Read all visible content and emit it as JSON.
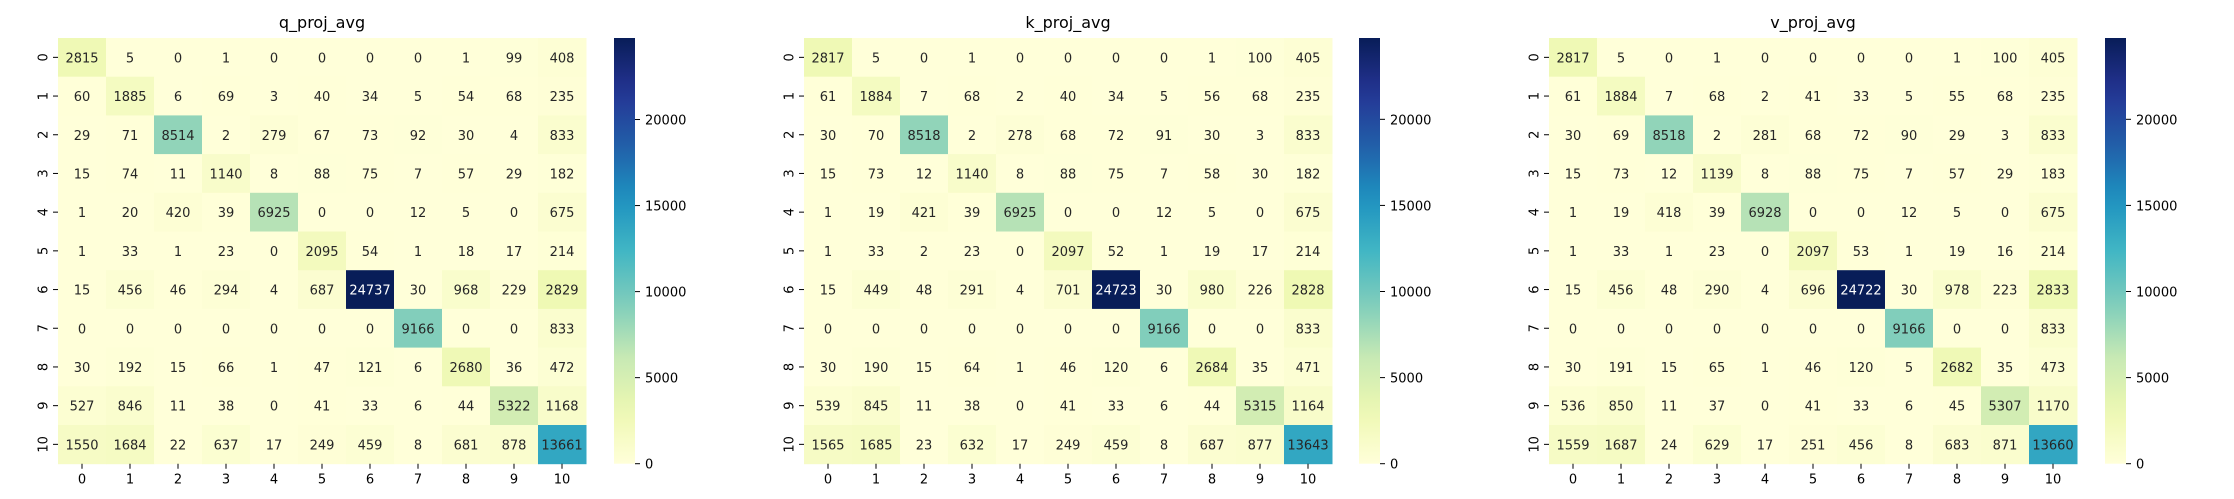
{
  "chart_data": [
    {
      "type": "heatmap",
      "title": "q_proj_avg",
      "x_categories": [
        "0",
        "1",
        "2",
        "3",
        "4",
        "5",
        "6",
        "7",
        "8",
        "9",
        "10"
      ],
      "y_categories": [
        "0",
        "1",
        "2",
        "3",
        "4",
        "5",
        "6",
        "7",
        "8",
        "9",
        "10"
      ],
      "values": [
        [
          2815,
          5,
          0,
          1,
          0,
          0,
          0,
          0,
          1,
          99,
          408
        ],
        [
          60,
          1885,
          6,
          69,
          3,
          40,
          34,
          5,
          54,
          68,
          235
        ],
        [
          29,
          71,
          8514,
          2,
          279,
          67,
          73,
          92,
          30,
          4,
          833
        ],
        [
          15,
          74,
          11,
          1140,
          8,
          88,
          75,
          7,
          57,
          29,
          182
        ],
        [
          1,
          20,
          420,
          39,
          6925,
          0,
          0,
          12,
          5,
          0,
          675
        ],
        [
          1,
          33,
          1,
          23,
          0,
          2095,
          54,
          1,
          18,
          17,
          214
        ],
        [
          15,
          456,
          46,
          294,
          4,
          687,
          24737,
          30,
          968,
          229,
          2829
        ],
        [
          0,
          0,
          0,
          0,
          0,
          0,
          0,
          9166,
          0,
          0,
          833
        ],
        [
          30,
          192,
          15,
          66,
          1,
          47,
          121,
          6,
          2680,
          36,
          472
        ],
        [
          527,
          846,
          11,
          38,
          0,
          41,
          33,
          6,
          44,
          5322,
          1168
        ],
        [
          1550,
          1684,
          22,
          637,
          17,
          249,
          459,
          8,
          681,
          878,
          13661
        ]
      ],
      "colorbar": {
        "range": [
          0,
          24737
        ],
        "ticks": [
          0,
          5000,
          10000,
          15000,
          20000
        ],
        "colormap": "YlGnBu"
      }
    },
    {
      "type": "heatmap",
      "title": "k_proj_avg",
      "x_categories": [
        "0",
        "1",
        "2",
        "3",
        "4",
        "5",
        "6",
        "7",
        "8",
        "9",
        "10"
      ],
      "y_categories": [
        "0",
        "1",
        "2",
        "3",
        "4",
        "5",
        "6",
        "7",
        "8",
        "9",
        "10"
      ],
      "values": [
        [
          2817,
          5,
          0,
          1,
          0,
          0,
          0,
          0,
          1,
          100,
          405
        ],
        [
          61,
          1884,
          7,
          68,
          2,
          40,
          34,
          5,
          56,
          68,
          235
        ],
        [
          30,
          70,
          8518,
          2,
          278,
          68,
          72,
          91,
          30,
          3,
          833
        ],
        [
          15,
          73,
          12,
          1140,
          8,
          88,
          75,
          7,
          58,
          30,
          182
        ],
        [
          1,
          19,
          421,
          39,
          6925,
          0,
          0,
          12,
          5,
          0,
          675
        ],
        [
          1,
          33,
          2,
          23,
          0,
          2097,
          52,
          1,
          19,
          17,
          214
        ],
        [
          15,
          449,
          48,
          291,
          4,
          701,
          24723,
          30,
          980,
          226,
          2828
        ],
        [
          0,
          0,
          0,
          0,
          0,
          0,
          0,
          9166,
          0,
          0,
          833
        ],
        [
          30,
          190,
          15,
          64,
          1,
          46,
          120,
          6,
          2684,
          35,
          471
        ],
        [
          539,
          845,
          11,
          38,
          0,
          41,
          33,
          6,
          44,
          5315,
          1164
        ],
        [
          1565,
          1685,
          23,
          632,
          17,
          249,
          459,
          8,
          687,
          877,
          13643
        ]
      ],
      "colorbar": {
        "range": [
          0,
          24723
        ],
        "ticks": [
          0,
          5000,
          10000,
          15000,
          20000
        ],
        "colormap": "YlGnBu"
      }
    },
    {
      "type": "heatmap",
      "title": "v_proj_avg",
      "x_categories": [
        "0",
        "1",
        "2",
        "3",
        "4",
        "5",
        "6",
        "7",
        "8",
        "9",
        "10"
      ],
      "y_categories": [
        "0",
        "1",
        "2",
        "3",
        "4",
        "5",
        "6",
        "7",
        "8",
        "9",
        "10"
      ],
      "values": [
        [
          2817,
          5,
          0,
          1,
          0,
          0,
          0,
          0,
          1,
          100,
          405
        ],
        [
          61,
          1884,
          7,
          68,
          2,
          41,
          33,
          5,
          55,
          68,
          235
        ],
        [
          30,
          69,
          8518,
          2,
          281,
          68,
          72,
          90,
          29,
          3,
          833
        ],
        [
          15,
          73,
          12,
          1139,
          8,
          88,
          75,
          7,
          57,
          29,
          183
        ],
        [
          1,
          19,
          418,
          39,
          6928,
          0,
          0,
          12,
          5,
          0,
          675
        ],
        [
          1,
          33,
          1,
          23,
          0,
          2097,
          53,
          1,
          19,
          16,
          214
        ],
        [
          15,
          456,
          48,
          290,
          4,
          696,
          24722,
          30,
          978,
          223,
          2833
        ],
        [
          0,
          0,
          0,
          0,
          0,
          0,
          0,
          9166,
          0,
          0,
          833
        ],
        [
          30,
          191,
          15,
          65,
          1,
          46,
          120,
          5,
          2682,
          35,
          473
        ],
        [
          536,
          850,
          11,
          37,
          0,
          41,
          33,
          6,
          45,
          5307,
          1170
        ],
        [
          1559,
          1687,
          24,
          629,
          17,
          251,
          456,
          8,
          683,
          871,
          13660
        ]
      ],
      "colorbar": {
        "range": [
          0,
          24722
        ],
        "ticks": [
          0,
          5000,
          10000,
          15000,
          20000
        ],
        "colormap": "YlGnBu"
      }
    }
  ]
}
